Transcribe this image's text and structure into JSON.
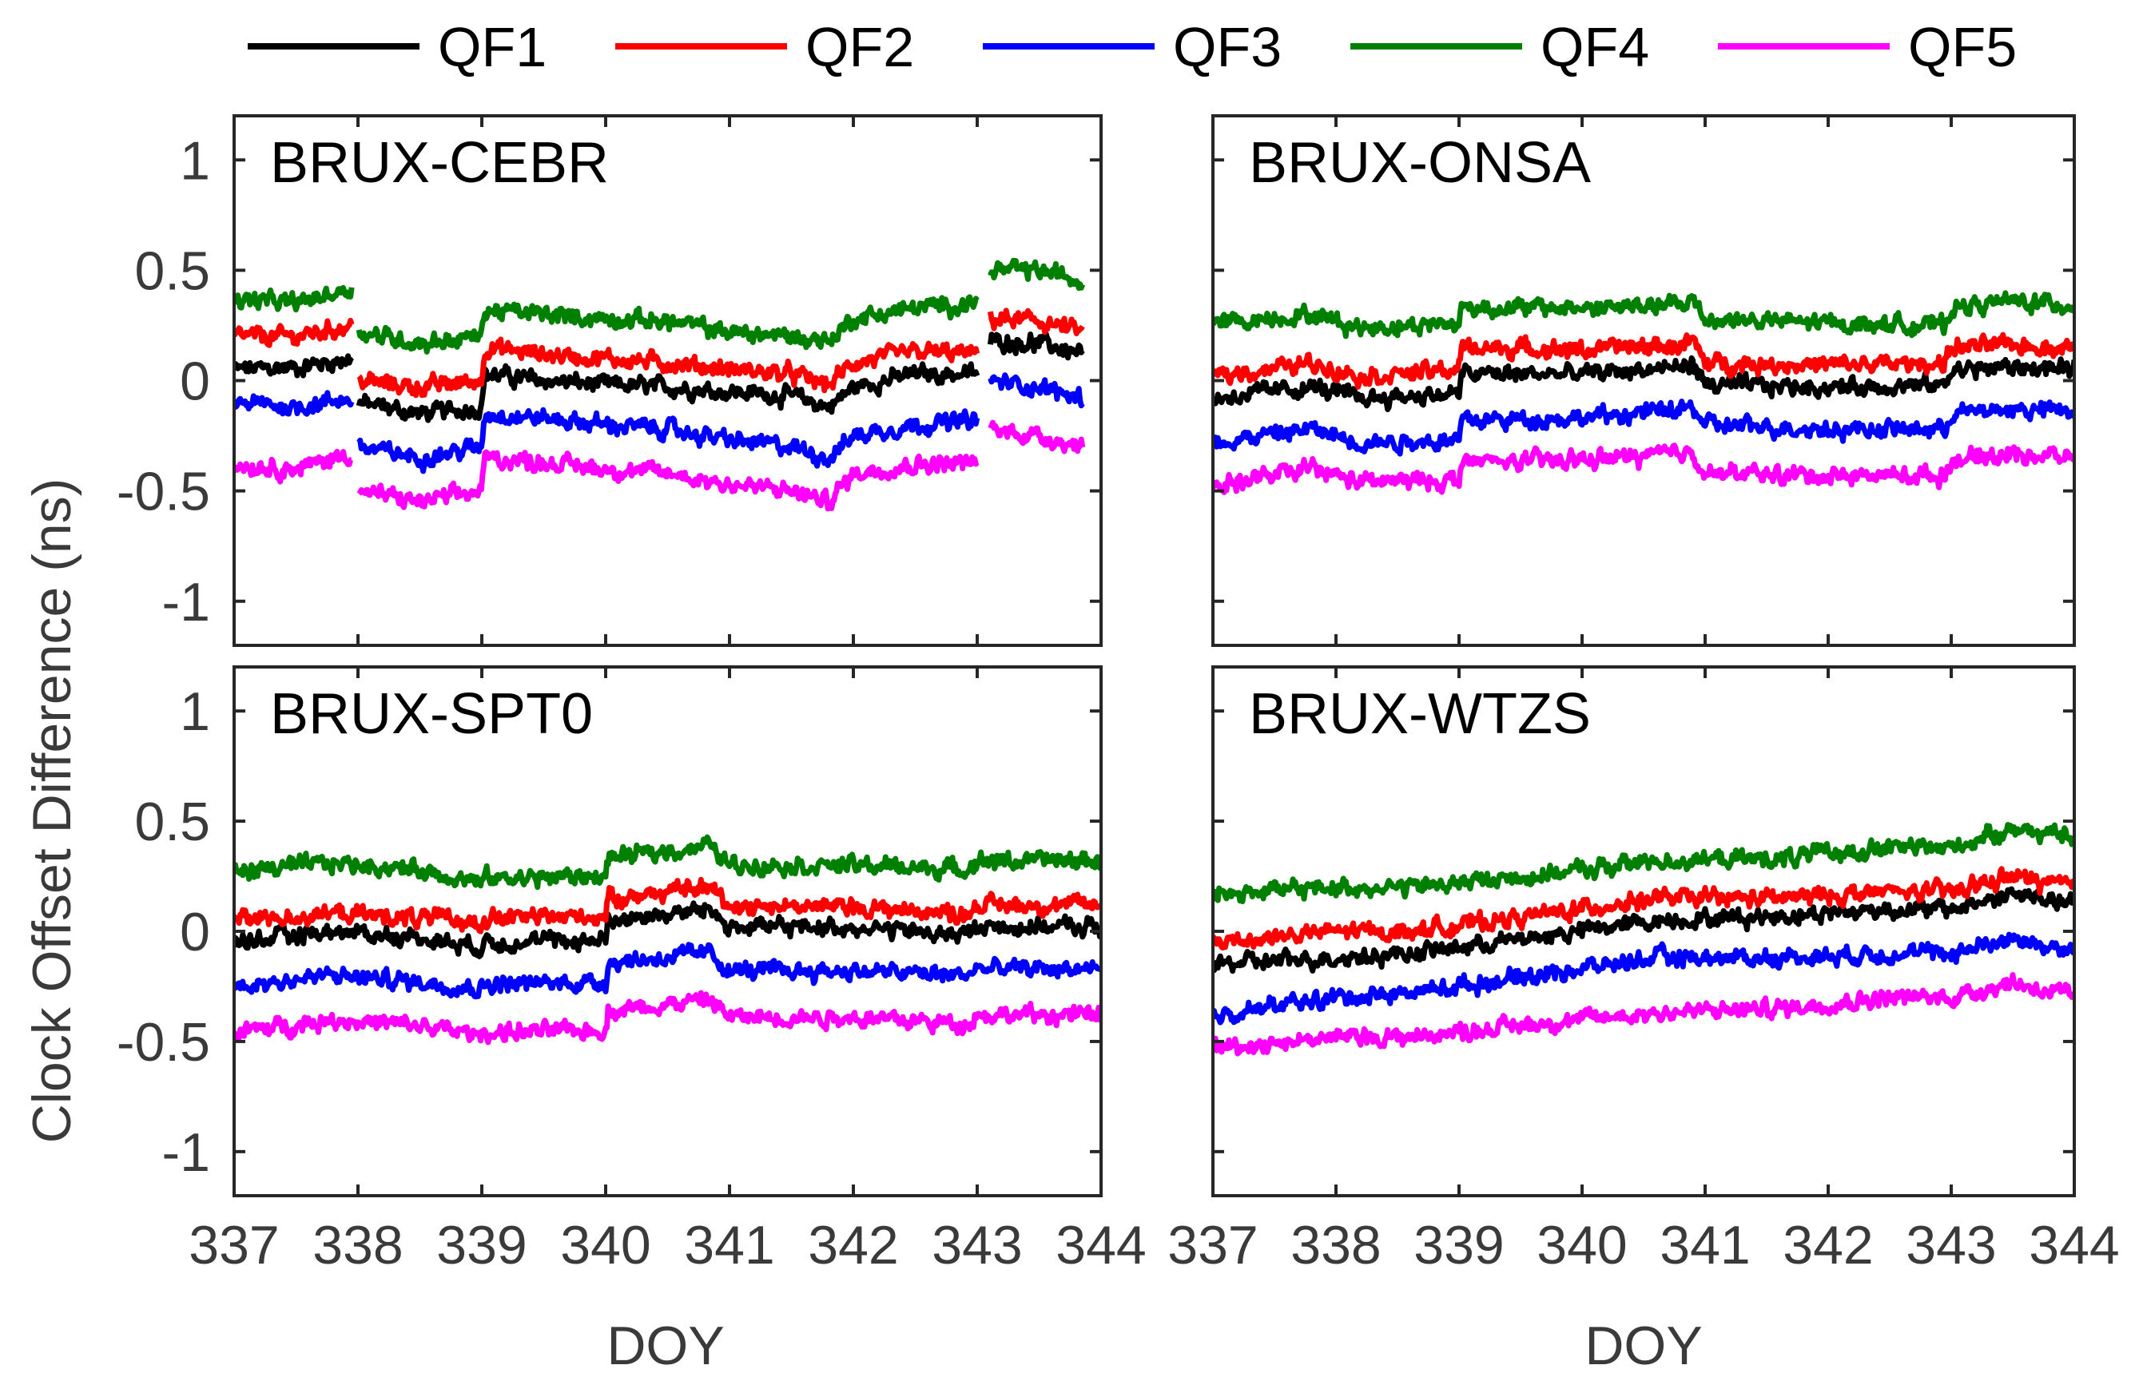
{
  "chart_data": {
    "type": "line",
    "figure": "Clock offset difference time series, 2x2 panels",
    "ylabel": "Clock Offset Difference (ns)",
    "xlabel": "DOY",
    "xlim": [
      337,
      344
    ],
    "ylim": [
      -1.2,
      1.2
    ],
    "xticks": [
      337,
      338,
      339,
      340,
      341,
      342,
      343,
      344
    ],
    "xtick_labels": [
      "337",
      "338",
      "339",
      "340",
      "341",
      "342",
      "343",
      "344"
    ],
    "yticks": [
      1,
      0.5,
      0,
      -0.5,
      -1
    ],
    "ytick_labels": [
      "1",
      "0.5",
      "0",
      "-0.5",
      "-1"
    ],
    "legend": [
      {
        "name": "QF1",
        "color": "#000000"
      },
      {
        "name": "QF2",
        "color": "#ff0000"
      },
      {
        "name": "QF3",
        "color": "#0000ff"
      },
      {
        "name": "QF4",
        "color": "#008000"
      },
      {
        "name": "QF5",
        "color": "#ff00ff"
      }
    ],
    "panels": [
      {
        "title": "BRUX-CEBR",
        "gaps": [
          [
            337.95,
            338.0
          ],
          [
            343.0,
            343.1
          ]
        ],
        "series": [
          {
            "name": "QF1",
            "x": [
              337.0,
              337.5,
              337.95,
              338.0,
              338.5,
              339.0,
              339.02,
              339.5,
              340.0,
              340.5,
              341.0,
              341.5,
              341.8,
              342.0,
              342.5,
              343.0,
              343.1,
              343.5,
              343.85
            ],
            "y": [
              0.05,
              0.06,
              0.1,
              -0.1,
              -0.15,
              -0.12,
              0.03,
              0.0,
              -0.02,
              -0.03,
              -0.05,
              -0.07,
              -0.12,
              -0.03,
              0.03,
              0.03,
              0.18,
              0.17,
              0.12
            ]
          },
          {
            "name": "QF2",
            "x": [
              337.0,
              337.5,
              337.95,
              338.0,
              338.5,
              339.0,
              339.02,
              339.5,
              340.0,
              340.5,
              341.0,
              341.5,
              341.8,
              342.0,
              342.5,
              343.0,
              343.1,
              343.5,
              343.85
            ],
            "y": [
              0.2,
              0.2,
              0.25,
              0.0,
              -0.03,
              0.0,
              0.15,
              0.12,
              0.1,
              0.08,
              0.05,
              0.03,
              -0.02,
              0.08,
              0.13,
              0.12,
              0.28,
              0.27,
              0.22
            ]
          },
          {
            "name": "QF3",
            "x": [
              337.0,
              337.5,
              337.95,
              338.0,
              338.5,
              339.0,
              339.02,
              339.5,
              340.0,
              340.5,
              341.0,
              341.5,
              341.8,
              342.0,
              342.5,
              343.0,
              343.1,
              343.5,
              343.85
            ],
            "y": [
              -0.1,
              -0.12,
              -0.08,
              -0.3,
              -0.35,
              -0.3,
              -0.15,
              -0.17,
              -0.2,
              -0.22,
              -0.27,
              -0.3,
              -0.35,
              -0.25,
              -0.2,
              -0.18,
              0.0,
              -0.03,
              -0.08
            ]
          },
          {
            "name": "QF4",
            "x": [
              337.0,
              337.5,
              337.95,
              338.0,
              338.5,
              339.0,
              339.02,
              339.5,
              340.0,
              340.5,
              341.0,
              341.5,
              341.8,
              342.0,
              342.5,
              343.0,
              343.1,
              343.5,
              343.85
            ],
            "y": [
              0.37,
              0.35,
              0.42,
              0.22,
              0.17,
              0.2,
              0.32,
              0.3,
              0.28,
              0.27,
              0.22,
              0.2,
              0.18,
              0.28,
              0.33,
              0.35,
              0.5,
              0.5,
              0.45
            ]
          },
          {
            "name": "QF5",
            "x": [
              337.0,
              337.5,
              337.95,
              338.0,
              338.5,
              339.0,
              339.02,
              339.5,
              340.0,
              340.5,
              341.0,
              341.5,
              341.8,
              342.0,
              342.5,
              343.0,
              343.1,
              343.5,
              343.85
            ],
            "y": [
              -0.38,
              -0.4,
              -0.33,
              -0.5,
              -0.55,
              -0.5,
              -0.35,
              -0.37,
              -0.4,
              -0.42,
              -0.47,
              -0.5,
              -0.55,
              -0.42,
              -0.38,
              -0.37,
              -0.22,
              -0.25,
              -0.3
            ]
          }
        ]
      },
      {
        "title": "BRUX-ONSA",
        "gaps": [],
        "series": [
          {
            "name": "QF1",
            "x": [
              337.0,
              337.8,
              338.2,
              339.0,
              339.02,
              340.0,
              340.8,
              340.9,
              341.0,
              342.0,
              342.95,
              343.0,
              343.5,
              344.0
            ],
            "y": [
              -0.08,
              -0.03,
              -0.08,
              -0.06,
              0.03,
              0.03,
              0.06,
              0.08,
              -0.02,
              -0.03,
              -0.02,
              0.05,
              0.06,
              0.05
            ]
          },
          {
            "name": "QF2",
            "x": [
              337.0,
              337.8,
              338.2,
              339.0,
              339.02,
              340.0,
              340.8,
              340.9,
              341.0,
              342.0,
              342.95,
              343.0,
              343.5,
              344.0
            ],
            "y": [
              0.02,
              0.08,
              0.02,
              0.05,
              0.15,
              0.14,
              0.16,
              0.18,
              0.08,
              0.07,
              0.08,
              0.15,
              0.16,
              0.15
            ]
          },
          {
            "name": "QF3",
            "x": [
              337.0,
              337.8,
              338.2,
              339.0,
              339.02,
              340.0,
              340.8,
              340.9,
              341.0,
              342.0,
              342.95,
              343.0,
              343.5,
              344.0
            ],
            "y": [
              -0.28,
              -0.22,
              -0.28,
              -0.27,
              -0.18,
              -0.17,
              -0.13,
              -0.12,
              -0.2,
              -0.22,
              -0.22,
              -0.15,
              -0.13,
              -0.14
            ]
          },
          {
            "name": "QF4",
            "x": [
              337.0,
              337.8,
              338.2,
              339.0,
              339.02,
              340.0,
              340.8,
              340.9,
              341.0,
              342.0,
              342.95,
              343.0,
              343.5,
              344.0
            ],
            "y": [
              0.26,
              0.3,
              0.24,
              0.26,
              0.33,
              0.33,
              0.34,
              0.37,
              0.28,
              0.26,
              0.25,
              0.33,
              0.36,
              0.34
            ]
          },
          {
            "name": "QF5",
            "x": [
              337.0,
              337.8,
              338.2,
              339.0,
              339.02,
              340.0,
              340.8,
              340.9,
              341.0,
              342.0,
              342.95,
              343.0,
              343.5,
              344.0
            ],
            "y": [
              -0.48,
              -0.4,
              -0.46,
              -0.45,
              -0.37,
              -0.36,
              -0.33,
              -0.32,
              -0.42,
              -0.43,
              -0.43,
              -0.36,
              -0.33,
              -0.35
            ]
          }
        ]
      },
      {
        "title": "BRUX-SPT0",
        "gaps": [],
        "series": [
          {
            "name": "QF1",
            "x": [
              337.0,
              337.8,
              338.5,
              339.0,
              339.02,
              340.0,
              340.02,
              340.85,
              341.0,
              342.0,
              342.9,
              343.0,
              344.0
            ],
            "y": [
              -0.05,
              0.0,
              -0.03,
              -0.07,
              -0.05,
              -0.04,
              0.05,
              0.1,
              0.02,
              0.02,
              -0.02,
              0.02,
              0.02
            ]
          },
          {
            "name": "QF2",
            "x": [
              337.0,
              337.8,
              338.5,
              339.0,
              339.02,
              340.0,
              340.02,
              340.85,
              341.0,
              342.0,
              342.9,
              343.0,
              344.0
            ],
            "y": [
              0.05,
              0.08,
              0.06,
              0.04,
              0.06,
              0.07,
              0.15,
              0.2,
              0.12,
              0.11,
              0.08,
              0.12,
              0.12
            ]
          },
          {
            "name": "QF3",
            "x": [
              337.0,
              337.8,
              338.5,
              339.0,
              339.02,
              340.0,
              340.02,
              340.85,
              341.0,
              342.0,
              342.9,
              343.0,
              344.0
            ],
            "y": [
              -0.25,
              -0.2,
              -0.23,
              -0.26,
              -0.24,
              -0.23,
              -0.14,
              -0.1,
              -0.18,
              -0.18,
              -0.2,
              -0.17,
              -0.17
            ]
          },
          {
            "name": "QF4",
            "x": [
              337.0,
              337.8,
              338.5,
              339.0,
              339.02,
              340.0,
              340.02,
              340.85,
              341.0,
              342.0,
              342.9,
              343.0,
              344.0
            ],
            "y": [
              0.27,
              0.31,
              0.28,
              0.22,
              0.24,
              0.25,
              0.33,
              0.39,
              0.3,
              0.3,
              0.28,
              0.32,
              0.32
            ]
          },
          {
            "name": "QF5",
            "x": [
              337.0,
              337.8,
              338.5,
              339.0,
              339.02,
              340.0,
              340.02,
              340.85,
              341.0,
              342.0,
              342.9,
              343.0,
              344.0
            ],
            "y": [
              -0.46,
              -0.4,
              -0.43,
              -0.47,
              -0.46,
              -0.45,
              -0.36,
              -0.31,
              -0.39,
              -0.39,
              -0.42,
              -0.38,
              -0.38
            ]
          }
        ]
      },
      {
        "title": "BRUX-WTZS",
        "gaps": [],
        "series": [
          {
            "name": "QF1",
            "x": [
              337.0,
              338.0,
              338.6,
              339.6,
              340.6,
              341.6,
              342.5,
              343.0,
              343.5,
              344.0
            ],
            "y": [
              -0.15,
              -0.12,
              -0.1,
              -0.03,
              0.05,
              0.07,
              0.1,
              0.1,
              0.17,
              0.12
            ]
          },
          {
            "name": "QF2",
            "x": [
              337.0,
              338.0,
              338.6,
              339.6,
              340.6,
              341.6,
              342.5,
              343.0,
              343.5,
              344.0
            ],
            "y": [
              -0.05,
              0.0,
              0.0,
              0.07,
              0.15,
              0.15,
              0.18,
              0.18,
              0.25,
              0.2
            ]
          },
          {
            "name": "QF3",
            "x": [
              337.0,
              338.0,
              338.6,
              339.6,
              340.6,
              341.6,
              342.5,
              343.0,
              343.5,
              344.0
            ],
            "y": [
              -0.38,
              -0.3,
              -0.28,
              -0.2,
              -0.12,
              -0.12,
              -0.1,
              -0.1,
              -0.03,
              -0.1
            ]
          },
          {
            "name": "QF4",
            "x": [
              337.0,
              338.0,
              338.6,
              339.6,
              340.6,
              341.6,
              342.5,
              343.0,
              343.5,
              344.0
            ],
            "y": [
              0.17,
              0.2,
              0.2,
              0.25,
              0.32,
              0.33,
              0.38,
              0.38,
              0.47,
              0.42
            ]
          },
          {
            "name": "QF5",
            "x": [
              337.0,
              338.0,
              338.6,
              339.6,
              340.6,
              341.6,
              342.5,
              343.0,
              343.5,
              344.0
            ],
            "y": [
              -0.53,
              -0.48,
              -0.48,
              -0.42,
              -0.37,
              -0.35,
              -0.3,
              -0.3,
              -0.23,
              -0.3
            ]
          }
        ]
      }
    ]
  }
}
